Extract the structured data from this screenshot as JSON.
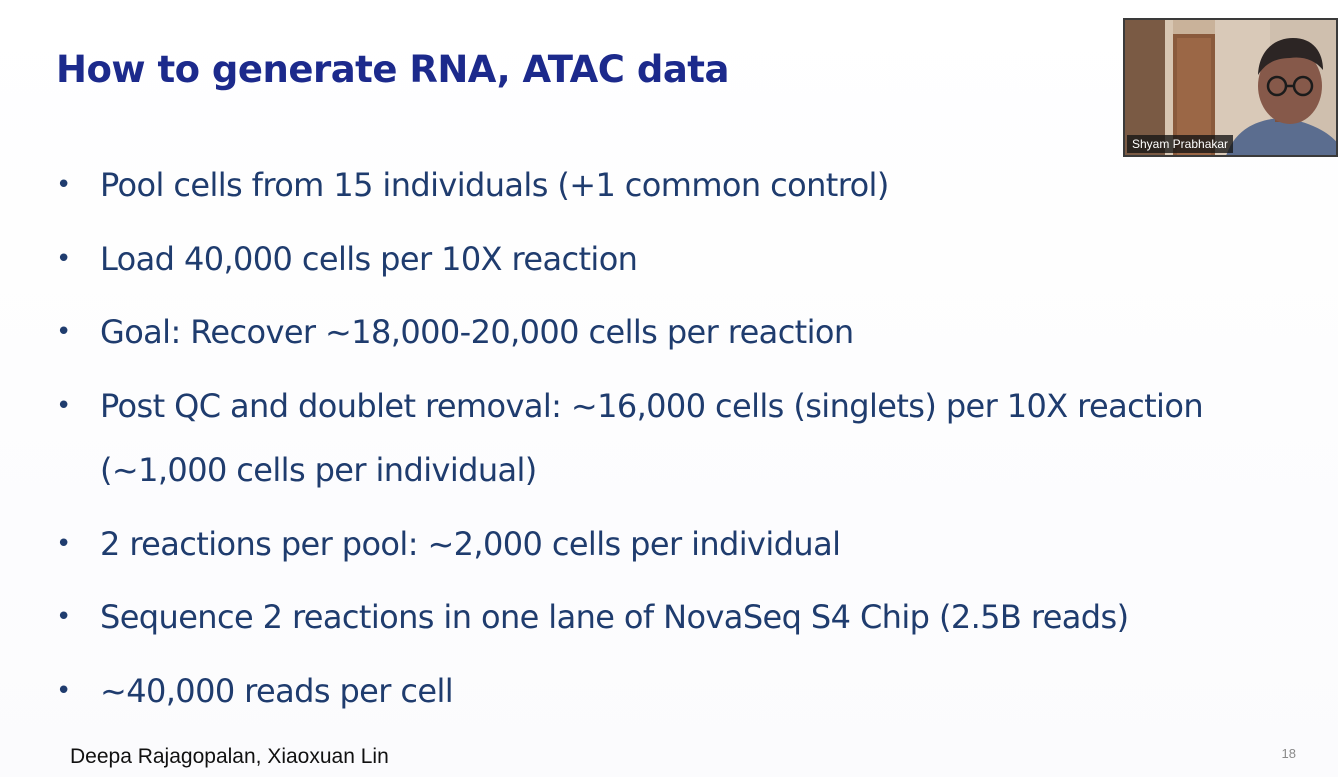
{
  "slide": {
    "title": "How to generate RNA, ATAC data",
    "bullets": [
      {
        "text": "Pool cells from 15 individuals (+1 common control)"
      },
      {
        "text": "Load 40,000 cells per 10X reaction"
      },
      {
        "text": "Goal: Recover ~18,000-20,000 cells per reaction"
      },
      {
        "text": "Post QC and doublet removal: ~16,000 cells (singlets) per 10X reaction",
        "continuation": "(~1,000 cells per individual)"
      },
      {
        "text": "2 reactions per pool: ~2,000 cells per individual"
      },
      {
        "text": "Sequence 2 reactions in one lane of NovaSeq S4 Chip (2.5B reads)"
      },
      {
        "text": "~40,000 reads per cell"
      }
    ],
    "bullet_glyph": "•",
    "footer_authors": "Deepa Rajagopalan, Xiaoxuan Lin",
    "page_number": "18"
  },
  "video": {
    "participant_name": "Shyam Prabhakar"
  },
  "colors": {
    "title": "#1c2a8c",
    "bullet_text": "#1f3c6e",
    "footer_text": "#111111",
    "page_number": "#8a8a8a"
  }
}
